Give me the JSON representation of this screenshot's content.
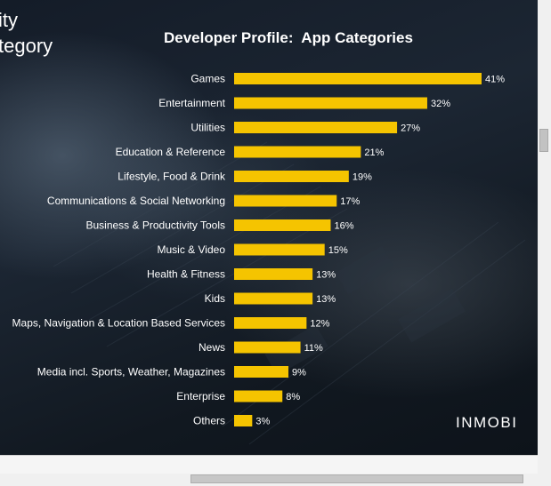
{
  "slide": {
    "partial_title_lines": [
      "ity",
      "tegory"
    ],
    "logo_text": "INMOBI"
  },
  "chart_data": {
    "type": "bar",
    "orientation": "horizontal",
    "title": "Developer Profile:  App Categories",
    "categories": [
      "Games",
      "Entertainment",
      "Utilities",
      "Education & Reference",
      "Lifestyle, Food & Drink",
      "Communications & Social Networking",
      "Business & Productivity Tools",
      "Music & Video",
      "Health & Fitness",
      "Kids",
      "Maps, Navigation & Location Based Services",
      "News",
      "Media incl. Sports, Weather, Magazines",
      "Enterprise",
      "Others"
    ],
    "values": [
      41,
      32,
      27,
      21,
      19,
      17,
      16,
      15,
      13,
      13,
      12,
      11,
      9,
      8,
      3
    ],
    "value_labels": [
      "41%",
      "32%",
      "27%",
      "21%",
      "19%",
      "17%",
      "16%",
      "15%",
      "13%",
      "13%",
      "12%",
      "11%",
      "9%",
      "8%",
      "3%"
    ],
    "xlim": [
      0,
      41
    ],
    "grid": false,
    "legend": "none",
    "bar_color": "#f5c400"
  }
}
